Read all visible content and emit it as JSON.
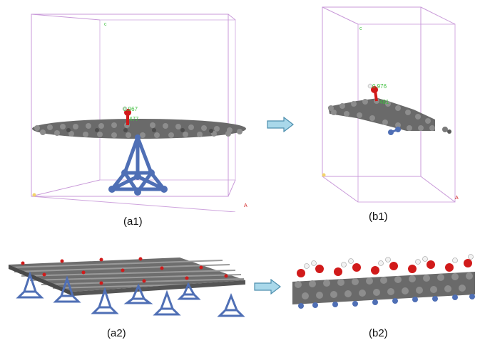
{
  "colors": {
    "carbon": "#5a5a5a",
    "carbon_light": "#8c8c8c",
    "metal": "#4f6fb5",
    "oxygen": "#d11a1a",
    "hydrogen": "#f2f2f2",
    "cell": "#c99ad9",
    "label_green": "#3fbf3f",
    "arrow_fill": "#a9d8ea",
    "arrow_stroke": "#4d8fae"
  },
  "panels": {
    "a1": {
      "caption": "(a1)",
      "axis_c": "c",
      "axis_a": "A",
      "dim_top": "0.967",
      "dim_bottom": "477"
    },
    "b1": {
      "caption": "(b1)",
      "axis_c": "c",
      "axis_a": "A",
      "dim_top": "0.976",
      "dim_bottom": "481"
    },
    "a2": {
      "caption": "(a2)"
    },
    "b2": {
      "caption": "(b2)"
    }
  },
  "arrows": [
    {
      "direction": "right-arrow-icon"
    },
    {
      "direction": "right-arrow-icon"
    }
  ]
}
